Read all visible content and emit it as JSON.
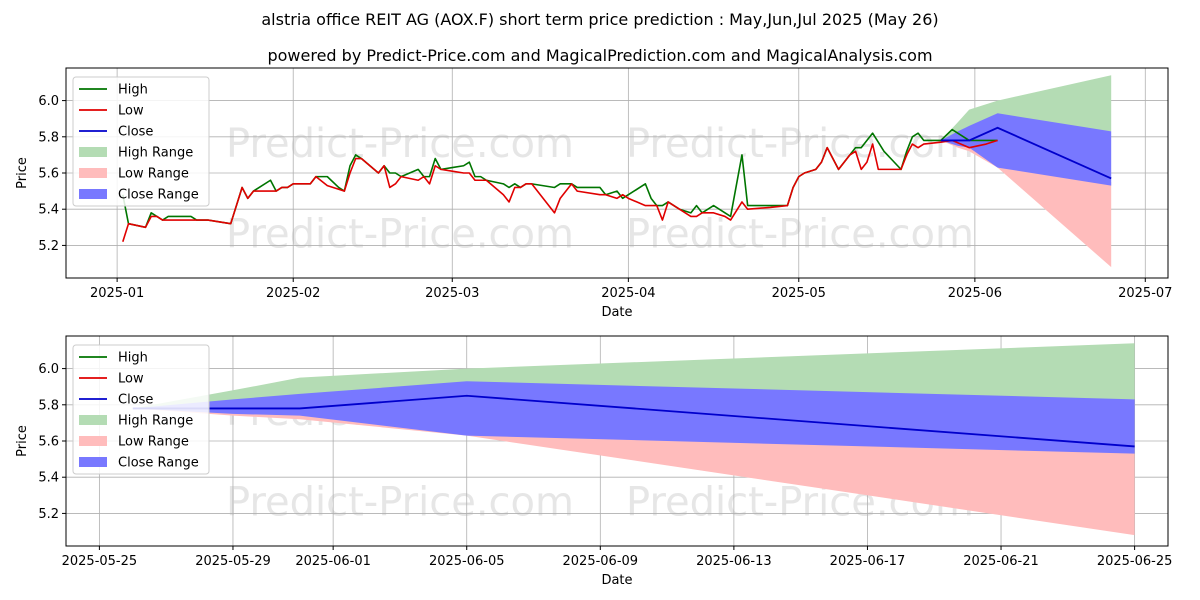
{
  "title": "alstria office REIT AG (AOX.F) short term price prediction : May,Jun,Jul 2025 (May 26)",
  "subtitle": "powered by Predict-Price.com and MagicalPrediction.com and MagicalAnalysis.com",
  "watermark": "Predict-Price.com",
  "colors": {
    "high": "#007500",
    "low": "#e00000",
    "close": "#0000cc",
    "high_range": "#b4dcb4",
    "low_range": "#ffbcbc",
    "close_range": "#7878ff",
    "grid": "#b0b0b0"
  },
  "chart_data": [
    {
      "type": "line",
      "xlabel": "Date",
      "ylabel": "Price",
      "xlim": [
        "2024-12-23",
        "2025-07-05"
      ],
      "ylim": [
        5.02,
        6.18
      ],
      "yticks": [
        5.2,
        5.4,
        5.6,
        5.8,
        6.0
      ],
      "ytick_labels": [
        "5.2",
        "5.4",
        "5.6",
        "5.8",
        "6.0"
      ],
      "xticks": [
        "2025-01-01",
        "2025-02-01",
        "2025-03-01",
        "2025-04-01",
        "2025-05-01",
        "2025-06-01",
        "2025-07-01"
      ],
      "xtick_labels": [
        "2025-01",
        "2025-02",
        "2025-03",
        "2025-04",
        "2025-05",
        "2025-06",
        "2025-07"
      ],
      "legend": [
        "High",
        "Low",
        "Close",
        "High Range",
        "Low Range",
        "Close Range"
      ],
      "legend_position": "top-left",
      "grid": true,
      "series": [
        {
          "name": "High",
          "points": [
            [
              "2025-01-02",
              5.48
            ],
            [
              "2025-01-03",
              5.32
            ],
            [
              "2025-01-06",
              5.3
            ],
            [
              "2025-01-07",
              5.38
            ],
            [
              "2025-01-08",
              5.36
            ],
            [
              "2025-01-09",
              5.34
            ],
            [
              "2025-01-10",
              5.36
            ],
            [
              "2025-01-14",
              5.36
            ],
            [
              "2025-01-15",
              5.34
            ],
            [
              "2025-01-16",
              5.34
            ],
            [
              "2025-01-17",
              5.34
            ],
            [
              "2025-01-21",
              5.32
            ],
            [
              "2025-01-23",
              5.52
            ],
            [
              "2025-01-24",
              5.46
            ],
            [
              "2025-01-25",
              5.5
            ],
            [
              "2025-01-28",
              5.56
            ],
            [
              "2025-01-29",
              5.5
            ],
            [
              "2025-01-30",
              5.52
            ],
            [
              "2025-01-31",
              5.52
            ],
            [
              "2025-02-01",
              5.54
            ],
            [
              "2025-02-04",
              5.54
            ],
            [
              "2025-02-05",
              5.58
            ],
            [
              "2025-02-07",
              5.58
            ],
            [
              "2025-02-09",
              5.52
            ],
            [
              "2025-02-10",
              5.5
            ],
            [
              "2025-02-11",
              5.64
            ],
            [
              "2025-02-12",
              5.7
            ],
            [
              "2025-02-13",
              5.68
            ],
            [
              "2025-02-16",
              5.6
            ],
            [
              "2025-02-17",
              5.64
            ],
            [
              "2025-02-18",
              5.6
            ],
            [
              "2025-02-19",
              5.6
            ],
            [
              "2025-02-20",
              5.58
            ],
            [
              "2025-02-23",
              5.62
            ],
            [
              "2025-02-24",
              5.58
            ],
            [
              "2025-02-25",
              5.58
            ],
            [
              "2025-02-26",
              5.68
            ],
            [
              "2025-02-27",
              5.62
            ],
            [
              "2025-03-01",
              5.63
            ],
            [
              "2025-03-03",
              5.64
            ],
            [
              "2025-03-04",
              5.66
            ],
            [
              "2025-03-05",
              5.58
            ],
            [
              "2025-03-06",
              5.58
            ],
            [
              "2025-03-07",
              5.56
            ],
            [
              "2025-03-10",
              5.54
            ],
            [
              "2025-03-11",
              5.52
            ],
            [
              "2025-03-12",
              5.54
            ],
            [
              "2025-03-13",
              5.52
            ],
            [
              "2025-03-14",
              5.54
            ],
            [
              "2025-03-15",
              5.54
            ],
            [
              "2025-03-19",
              5.52
            ],
            [
              "2025-03-20",
              5.54
            ],
            [
              "2025-03-22",
              5.54
            ],
            [
              "2025-03-23",
              5.52
            ],
            [
              "2025-03-27",
              5.52
            ],
            [
              "2025-03-28",
              5.48
            ],
            [
              "2025-03-30",
              5.5
            ],
            [
              "2025-03-31",
              5.46
            ],
            [
              "2025-04-01",
              5.48
            ],
            [
              "2025-04-04",
              5.54
            ],
            [
              "2025-04-05",
              5.46
            ],
            [
              "2025-04-06",
              5.42
            ],
            [
              "2025-04-07",
              5.42
            ],
            [
              "2025-04-08",
              5.44
            ],
            [
              "2025-04-10",
              5.4
            ],
            [
              "2025-04-12",
              5.38
            ],
            [
              "2025-04-13",
              5.42
            ],
            [
              "2025-04-14",
              5.38
            ],
            [
              "2025-04-16",
              5.42
            ],
            [
              "2025-04-18",
              5.38
            ],
            [
              "2025-04-19",
              5.36
            ],
            [
              "2025-04-21",
              5.7
            ],
            [
              "2025-04-22",
              5.42
            ],
            [
              "2025-04-26",
              5.42
            ],
            [
              "2025-04-29",
              5.42
            ],
            [
              "2025-04-30",
              5.52
            ],
            [
              "2025-05-01",
              5.58
            ],
            [
              "2025-05-02",
              5.6
            ],
            [
              "2025-05-04",
              5.62
            ],
            [
              "2025-05-05",
              5.66
            ],
            [
              "2025-05-06",
              5.74
            ],
            [
              "2025-05-08",
              5.62
            ],
            [
              "2025-05-09",
              5.66
            ],
            [
              "2025-05-10",
              5.7
            ],
            [
              "2025-05-11",
              5.74
            ],
            [
              "2025-05-12",
              5.74
            ],
            [
              "2025-05-14",
              5.82
            ],
            [
              "2025-05-15",
              5.77
            ],
            [
              "2025-05-16",
              5.72
            ],
            [
              "2025-05-19",
              5.62
            ],
            [
              "2025-05-20",
              5.72
            ],
            [
              "2025-05-21",
              5.8
            ],
            [
              "2025-05-22",
              5.82
            ],
            [
              "2025-05-23",
              5.78
            ],
            [
              "2025-05-26",
              5.78
            ],
            [
              "2025-05-28",
              5.84
            ],
            [
              "2025-05-31",
              5.78
            ],
            [
              "2025-06-03",
              5.78
            ],
            [
              "2025-06-05",
              5.78
            ]
          ]
        },
        {
          "name": "Low",
          "points": [
            [
              "2025-01-02",
              5.22
            ],
            [
              "2025-01-03",
              5.32
            ],
            [
              "2025-01-06",
              5.3
            ],
            [
              "2025-01-07",
              5.36
            ],
            [
              "2025-01-08",
              5.36
            ],
            [
              "2025-01-09",
              5.34
            ],
            [
              "2025-01-10",
              5.34
            ],
            [
              "2025-01-14",
              5.34
            ],
            [
              "2025-01-15",
              5.34
            ],
            [
              "2025-01-16",
              5.34
            ],
            [
              "2025-01-17",
              5.34
            ],
            [
              "2025-01-21",
              5.32
            ],
            [
              "2025-01-23",
              5.52
            ],
            [
              "2025-01-24",
              5.46
            ],
            [
              "2025-01-25",
              5.5
            ],
            [
              "2025-01-28",
              5.5
            ],
            [
              "2025-01-29",
              5.5
            ],
            [
              "2025-01-30",
              5.52
            ],
            [
              "2025-01-31",
              5.52
            ],
            [
              "2025-02-01",
              5.54
            ],
            [
              "2025-02-04",
              5.54
            ],
            [
              "2025-02-05",
              5.58
            ],
            [
              "2025-02-07",
              5.53
            ],
            [
              "2025-02-09",
              5.51
            ],
            [
              "2025-02-10",
              5.5
            ],
            [
              "2025-02-11",
              5.6
            ],
            [
              "2025-02-12",
              5.68
            ],
            [
              "2025-02-13",
              5.68
            ],
            [
              "2025-02-16",
              5.6
            ],
            [
              "2025-02-17",
              5.64
            ],
            [
              "2025-02-18",
              5.52
            ],
            [
              "2025-02-19",
              5.54
            ],
            [
              "2025-02-20",
              5.58
            ],
            [
              "2025-02-23",
              5.56
            ],
            [
              "2025-02-24",
              5.58
            ],
            [
              "2025-02-25",
              5.54
            ],
            [
              "2025-02-26",
              5.64
            ],
            [
              "2025-02-27",
              5.62
            ],
            [
              "2025-03-01",
              5.61
            ],
            [
              "2025-03-03",
              5.6
            ],
            [
              "2025-03-04",
              5.6
            ],
            [
              "2025-03-05",
              5.56
            ],
            [
              "2025-03-06",
              5.56
            ],
            [
              "2025-03-07",
              5.56
            ],
            [
              "2025-03-10",
              5.48
            ],
            [
              "2025-03-11",
              5.44
            ],
            [
              "2025-03-12",
              5.52
            ],
            [
              "2025-03-13",
              5.52
            ],
            [
              "2025-03-14",
              5.54
            ],
            [
              "2025-03-15",
              5.54
            ],
            [
              "2025-03-19",
              5.38
            ],
            [
              "2025-03-20",
              5.46
            ],
            [
              "2025-03-22",
              5.54
            ],
            [
              "2025-03-23",
              5.5
            ],
            [
              "2025-03-27",
              5.48
            ],
            [
              "2025-03-28",
              5.48
            ],
            [
              "2025-03-30",
              5.46
            ],
            [
              "2025-03-31",
              5.48
            ],
            [
              "2025-04-01",
              5.46
            ],
            [
              "2025-04-04",
              5.42
            ],
            [
              "2025-04-05",
              5.42
            ],
            [
              "2025-04-06",
              5.42
            ],
            [
              "2025-04-07",
              5.34
            ],
            [
              "2025-04-08",
              5.44
            ],
            [
              "2025-04-10",
              5.4
            ],
            [
              "2025-04-12",
              5.36
            ],
            [
              "2025-04-13",
              5.36
            ],
            [
              "2025-04-14",
              5.38
            ],
            [
              "2025-04-16",
              5.38
            ],
            [
              "2025-04-18",
              5.36
            ],
            [
              "2025-04-19",
              5.34
            ],
            [
              "2025-04-21",
              5.44
            ],
            [
              "2025-04-22",
              5.4
            ],
            [
              "2025-04-26",
              5.41
            ],
            [
              "2025-04-29",
              5.42
            ],
            [
              "2025-04-30",
              5.52
            ],
            [
              "2025-05-01",
              5.58
            ],
            [
              "2025-05-02",
              5.6
            ],
            [
              "2025-05-04",
              5.62
            ],
            [
              "2025-05-05",
              5.66
            ],
            [
              "2025-05-06",
              5.74
            ],
            [
              "2025-05-08",
              5.62
            ],
            [
              "2025-05-09",
              5.66
            ],
            [
              "2025-05-10",
              5.7
            ],
            [
              "2025-05-11",
              5.72
            ],
            [
              "2025-05-12",
              5.62
            ],
            [
              "2025-05-13",
              5.66
            ],
            [
              "2025-05-14",
              5.76
            ],
            [
              "2025-05-15",
              5.62
            ],
            [
              "2025-05-16",
              5.62
            ],
            [
              "2025-05-19",
              5.62
            ],
            [
              "2025-05-20",
              5.7
            ],
            [
              "2025-05-21",
              5.76
            ],
            [
              "2025-05-22",
              5.74
            ],
            [
              "2025-05-23",
              5.76
            ],
            [
              "2025-05-26",
              5.77
            ],
            [
              "2025-05-28",
              5.78
            ],
            [
              "2025-05-31",
              5.74
            ],
            [
              "2025-06-03",
              5.76
            ],
            [
              "2025-06-05",
              5.78
            ]
          ]
        }
      ]
    },
    {
      "type": "area",
      "xlabel": "Date",
      "ylabel": "Price",
      "xlim": [
        "2025-05-24",
        "2025-06-26"
      ],
      "ylim": [
        5.02,
        6.18
      ],
      "yticks": [
        5.2,
        5.4,
        5.6,
        5.8,
        6.0
      ],
      "ytick_labels": [
        "5.2",
        "5.4",
        "5.6",
        "5.8",
        "6.0"
      ],
      "xticks": [
        "2025-05-25",
        "2025-05-29",
        "2025-06-01",
        "2025-06-05",
        "2025-06-09",
        "2025-06-13",
        "2025-06-17",
        "2025-06-21",
        "2025-06-25"
      ],
      "xtick_labels": [
        "2025-05-25",
        "2025-05-29",
        "2025-06-01",
        "2025-06-05",
        "2025-06-09",
        "2025-06-13",
        "2025-06-17",
        "2025-06-21",
        "2025-06-25"
      ],
      "legend": [
        "High",
        "Low",
        "Close",
        "High Range",
        "Low Range",
        "Close Range"
      ],
      "legend_position": "top-left",
      "grid": true,
      "forecast": {
        "dates": [
          "2025-05-26",
          "2025-05-29",
          "2025-05-31",
          "2025-06-05",
          "2025-06-25"
        ],
        "close": [
          5.78,
          5.78,
          5.78,
          5.85,
          5.57
        ],
        "high_range_upper": [
          5.78,
          5.88,
          5.95,
          6.0,
          6.14
        ],
        "high_range_lower": [
          5.78,
          5.79,
          5.8,
          5.8,
          5.83
        ],
        "low_range_upper": [
          5.78,
          5.77,
          5.76,
          5.74,
          5.55
        ],
        "low_range_lower": [
          5.78,
          5.74,
          5.72,
          5.63,
          5.08
        ],
        "close_range_upper": [
          5.78,
          5.83,
          5.86,
          5.93,
          5.83
        ],
        "close_range_lower": [
          5.78,
          5.75,
          5.74,
          5.63,
          5.53
        ]
      }
    }
  ]
}
